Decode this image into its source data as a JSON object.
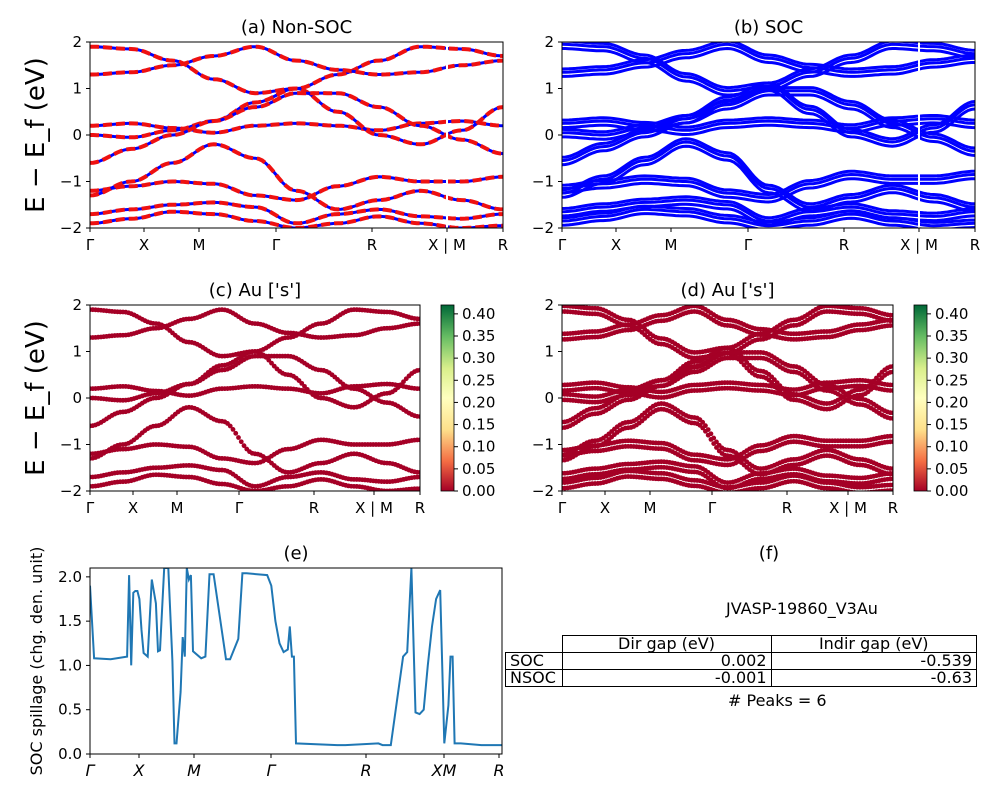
{
  "colors": {
    "nonsoc_red": "#ee1111",
    "soc_blue": "#0000ff",
    "proj_dot": "#a50026",
    "spillage_line": "#1f77b4",
    "cbar_stops": [
      "#a50026",
      "#f46d43",
      "#fee08b",
      "#ffffbf",
      "#d9ef8b",
      "#66bd63",
      "#006837"
    ]
  },
  "panels": {
    "a": {
      "title": "(a) Non-SOC"
    },
    "b": {
      "title": "(b) SOC"
    },
    "c": {
      "title": "(c)  Au ['s']"
    },
    "d": {
      "title": "(d) Au ['s']"
    },
    "e": {
      "title": "(e)"
    },
    "f": {
      "title": "(f)"
    }
  },
  "band_ylabel": "E − E_f (eV)",
  "band_yticks": [
    "2",
    "1",
    "0",
    "−1",
    "−2"
  ],
  "band_xticks": [
    "Γ",
    "X",
    "M",
    "Γ",
    "R",
    "X | M",
    "R"
  ],
  "colorbar_ticks": [
    "0.40",
    "0.35",
    "0.30",
    "0.25",
    "0.20",
    "0.15",
    "0.10",
    "0.05",
    "0.00"
  ],
  "chart_data": [
    {
      "type": "line",
      "panel": "a",
      "title": "(a) Non-SOC",
      "ylabel": "E − E_f (eV)",
      "ylim": [
        -2,
        2
      ],
      "x_ticklabels": [
        "Γ",
        "X",
        "M",
        "Γ",
        "R",
        "X | M",
        "R"
      ],
      "series": [
        {
          "values": [
            1.9,
            1.85,
            1.6,
            1.2,
            0.9,
            1.0,
            1.3,
            1.6,
            1.9,
            1.85,
            1.7
          ]
        },
        {
          "values": [
            1.3,
            1.35,
            1.5,
            1.7,
            1.9,
            1.6,
            1.4,
            1.3,
            1.35,
            1.5,
            1.6
          ]
        },
        {
          "values": [
            0.2,
            0.25,
            0.15,
            0.05,
            0.2,
            0.25,
            0.2,
            0.1,
            0.25,
            0.3,
            0.2
          ]
        },
        {
          "values": [
            0.0,
            -0.05,
            0.1,
            0.3,
            0.7,
            1.0,
            0.5,
            0.0,
            -0.2,
            0.1,
            0.6
          ]
        },
        {
          "values": [
            -0.6,
            -0.3,
            0.0,
            0.3,
            0.6,
            0.9,
            0.9,
            0.6,
            0.2,
            -0.1,
            -0.4
          ]
        },
        {
          "values": [
            -1.2,
            -1.1,
            -1.0,
            -1.05,
            -1.3,
            -1.4,
            -1.1,
            -0.9,
            -1.0,
            -1.0,
            -0.9
          ]
        },
        {
          "values": [
            -1.3,
            -1.0,
            -0.6,
            -0.2,
            -0.5,
            -1.2,
            -1.6,
            -1.4,
            -1.2,
            -1.4,
            -1.6
          ]
        },
        {
          "values": [
            -1.7,
            -1.6,
            -1.5,
            -1.45,
            -1.55,
            -1.9,
            -1.7,
            -1.6,
            -1.75,
            -1.8,
            -1.7
          ]
        },
        {
          "values": [
            -1.9,
            -1.8,
            -1.65,
            -1.7,
            -1.85,
            -2.0,
            -1.9,
            -1.75,
            -1.9,
            -2.0,
            -1.95
          ]
        }
      ]
    },
    {
      "type": "line",
      "panel": "b",
      "title": "(b) SOC",
      "ylim": [
        -2,
        2
      ],
      "x_ticklabels": [
        "Γ",
        "X",
        "M",
        "Γ",
        "R",
        "X | M",
        "R"
      ],
      "series": [
        {
          "values": [
            1.9,
            1.85,
            1.6,
            1.2,
            0.9,
            1.0,
            1.3,
            1.6,
            1.9,
            1.85,
            1.7
          ]
        },
        {
          "values": [
            1.3,
            1.35,
            1.5,
            1.7,
            1.9,
            1.6,
            1.4,
            1.3,
            1.35,
            1.5,
            1.6
          ]
        },
        {
          "values": [
            0.2,
            0.25,
            0.15,
            0.05,
            0.2,
            0.25,
            0.2,
            0.1,
            0.25,
            0.3,
            0.2
          ]
        },
        {
          "values": [
            0.0,
            -0.05,
            0.1,
            0.3,
            0.7,
            1.0,
            0.5,
            0.0,
            -0.2,
            0.1,
            0.6
          ]
        },
        {
          "values": [
            -0.6,
            -0.3,
            0.0,
            0.3,
            0.6,
            0.9,
            0.9,
            0.6,
            0.2,
            -0.1,
            -0.4
          ]
        },
        {
          "values": [
            -1.2,
            -1.1,
            -1.0,
            -1.05,
            -1.3,
            -1.4,
            -1.1,
            -0.9,
            -1.0,
            -1.0,
            -0.9
          ]
        },
        {
          "values": [
            -1.3,
            -1.0,
            -0.6,
            -0.2,
            -0.5,
            -1.2,
            -1.6,
            -1.4,
            -1.2,
            -1.4,
            -1.6
          ]
        },
        {
          "values": [
            -1.7,
            -1.6,
            -1.5,
            -1.45,
            -1.55,
            -1.9,
            -1.7,
            -1.6,
            -1.75,
            -1.8,
            -1.7
          ]
        },
        {
          "values": [
            -1.9,
            -1.8,
            -1.65,
            -1.7,
            -1.85,
            -2.0,
            -1.9,
            -1.75,
            -1.9,
            -2.0,
            -1.95
          ]
        }
      ]
    },
    {
      "type": "scatter",
      "panel": "c",
      "title": "(c)  Au ['s']",
      "ylabel": "E − E_f (eV)",
      "ylim": [
        -2,
        2
      ],
      "colorbar_range": [
        0.0,
        0.42
      ],
      "x_ticklabels": [
        "Γ",
        "X",
        "M",
        "Γ",
        "R",
        "X | M",
        "R"
      ]
    },
    {
      "type": "scatter",
      "panel": "d",
      "title": "(d) Au ['s']",
      "ylim": [
        -2,
        2
      ],
      "colorbar_range": [
        0.0,
        0.42
      ],
      "x_ticklabels": [
        "Γ",
        "X",
        "M",
        "Γ",
        "R",
        "X | M",
        "R"
      ]
    },
    {
      "type": "line",
      "panel": "e",
      "title": "(e)",
      "ylabel": "SOC spillage (chg. den. unit)",
      "ylim": [
        0,
        2.1
      ],
      "yticks": [
        "0.0",
        "0.5",
        "1.0",
        "1.5",
        "2.0"
      ],
      "x_ticklabels": [
        "Γ",
        "X",
        "M",
        "Γ",
        "R",
        "XM",
        "R"
      ],
      "x": [
        0,
        0.01,
        0.05,
        0.09,
        0.095,
        0.1,
        0.105,
        0.11,
        0.115,
        0.12,
        0.125,
        0.13,
        0.14,
        0.15,
        0.16,
        0.165,
        0.17,
        0.18,
        0.19,
        0.2,
        0.205,
        0.21,
        0.22,
        0.225,
        0.23,
        0.235,
        0.24,
        0.245,
        0.25,
        0.27,
        0.28,
        0.29,
        0.3,
        0.33,
        0.34,
        0.36,
        0.37,
        0.38,
        0.43,
        0.44,
        0.45,
        0.46,
        0.47,
        0.48,
        0.485,
        0.49,
        0.495,
        0.5,
        0.6,
        0.62,
        0.7,
        0.71,
        0.73,
        0.76,
        0.77,
        0.78,
        0.79,
        0.8,
        0.81,
        0.82,
        0.83,
        0.84,
        0.85,
        0.86,
        0.87,
        0.875,
        0.88,
        0.885,
        0.89,
        0.9,
        0.95,
        1.0
      ],
      "values": [
        1.9,
        1.08,
        1.07,
        1.1,
        2.02,
        1.0,
        1.82,
        1.84,
        1.84,
        1.75,
        1.4,
        1.14,
        1.1,
        1.97,
        1.7,
        1.16,
        1.17,
        2.1,
        2.1,
        1.05,
        0.12,
        0.12,
        0.7,
        1.32,
        1.1,
        2.1,
        1.97,
        2.02,
        1.16,
        1.08,
        1.1,
        2.03,
        2.03,
        1.07,
        1.07,
        1.3,
        2.04,
        2.04,
        2.02,
        1.9,
        1.5,
        1.25,
        1.15,
        1.18,
        1.44,
        1.1,
        1.1,
        0.12,
        0.1,
        0.1,
        0.12,
        0.1,
        0.1,
        1.1,
        1.15,
        2.1,
        0.47,
        0.45,
        0.5,
        1.0,
        1.44,
        1.75,
        1.85,
        0.12,
        0.55,
        1.1,
        1.1,
        0.12,
        0.12,
        0.12,
        0.1,
        0.1
      ]
    }
  ],
  "info": {
    "material_id": "JVASP-19860_V3Au",
    "gap_table": {
      "headers": [
        "Dir gap (eV)",
        "Indir gap (eV)"
      ],
      "rows": [
        {
          "label": "SOC",
          "dir": "0.002",
          "indir": "-0.539"
        },
        {
          "label": "NSOC",
          "dir": "-0.001",
          "indir": "-0.63"
        }
      ]
    },
    "peaks_text": "# Peaks = 6"
  }
}
